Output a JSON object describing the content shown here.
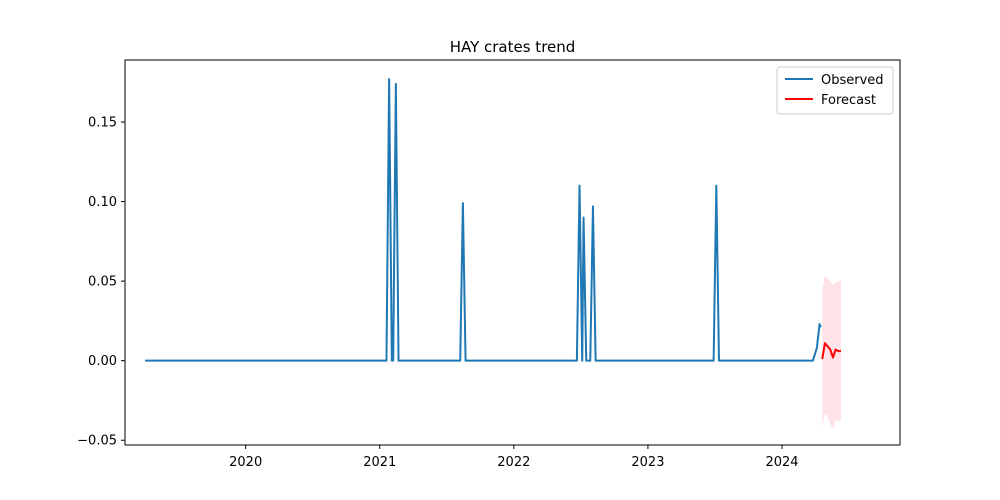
{
  "chart_data": {
    "type": "line",
    "title": "HAY crates trend",
    "xlabel": "",
    "ylabel": "",
    "xlim": [
      2019.1,
      2024.88
    ],
    "ylim": [
      -0.053,
      0.189
    ],
    "x_ticks": [
      2020,
      2021,
      2022,
      2023,
      2024
    ],
    "x_tick_labels": [
      "2020",
      "2021",
      "2022",
      "2023",
      "2024"
    ],
    "y_ticks": [
      -0.05,
      0.0,
      0.05,
      0.1,
      0.15
    ],
    "y_tick_labels": [
      "−0.05",
      "0.00",
      "0.05",
      "0.10",
      "0.15"
    ],
    "grid": false,
    "legend_position": "top-right",
    "series": [
      {
        "name": "Observed",
        "color": "#1f77b4",
        "x": [
          2019.25,
          2021.05,
          2021.07,
          2021.09,
          2021.1,
          2021.12,
          2021.14,
          2021.6,
          2021.62,
          2021.64,
          2022.47,
          2022.49,
          2022.51,
          2022.52,
          2022.54,
          2022.57,
          2022.59,
          2022.61,
          2023.49,
          2023.51,
          2023.53,
          2024.23,
          2024.26,
          2024.28,
          2024.29
        ],
        "y": [
          0,
          0,
          0.177,
          0,
          0,
          0.174,
          0,
          0,
          0.099,
          0,
          0,
          0.11,
          0,
          0.09,
          0,
          0,
          0.097,
          0,
          0,
          0.11,
          0,
          0,
          0.008,
          0.023,
          0.021
        ]
      },
      {
        "name": "Forecast",
        "color": "#ff0000",
        "x": [
          2024.3,
          2024.32,
          2024.34,
          2024.36,
          2024.38,
          2024.4,
          2024.42,
          2024.44
        ],
        "y": [
          0.001,
          0.011,
          0.009,
          0.007,
          0.002,
          0.007,
          0.006,
          0.006
        ],
        "band_upper": [
          0.045,
          0.053,
          0.052,
          0.05,
          0.047,
          0.049,
          0.05,
          0.05
        ],
        "band_lower": [
          -0.042,
          -0.033,
          -0.035,
          -0.04,
          -0.043,
          -0.037,
          -0.038,
          -0.038
        ],
        "band_color": "#ffc0cb"
      }
    ]
  }
}
